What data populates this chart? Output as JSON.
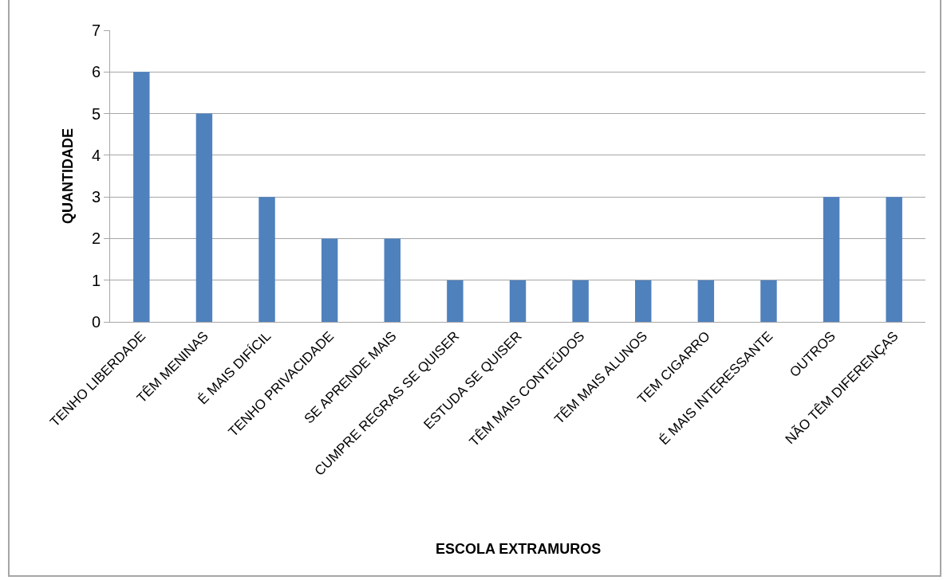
{
  "chart_data": {
    "type": "bar",
    "categories": [
      "TENHO LIBERDADE",
      "TÊM MENINAS",
      "É MAIS DIFÍCIL",
      "TENHO PRIVACIDADE",
      "SE APRENDE MAIS",
      "CUMPRE REGRAS SE QUISER",
      "ESTUDA SE QUISER",
      "TÊM MAIS CONTEÚDOS",
      "TÊM MAIS ALUNOS",
      "TEM CIGARRO",
      "É MAIS INTERESSANTE",
      "OUTROS",
      "NÃO TÊM DIFERENÇAS"
    ],
    "values": [
      6,
      5,
      3,
      2,
      2,
      1,
      1,
      1,
      1,
      1,
      1,
      3,
      3
    ],
    "color": "#4f81bd",
    "xlabel": "ESCOLA EXTRAMUROS",
    "ylabel": "QUANTIDADE",
    "ylim": [
      0,
      7
    ],
    "yticks": [
      0,
      1,
      2,
      3,
      4,
      5,
      6,
      7
    ],
    "grid": "y"
  }
}
